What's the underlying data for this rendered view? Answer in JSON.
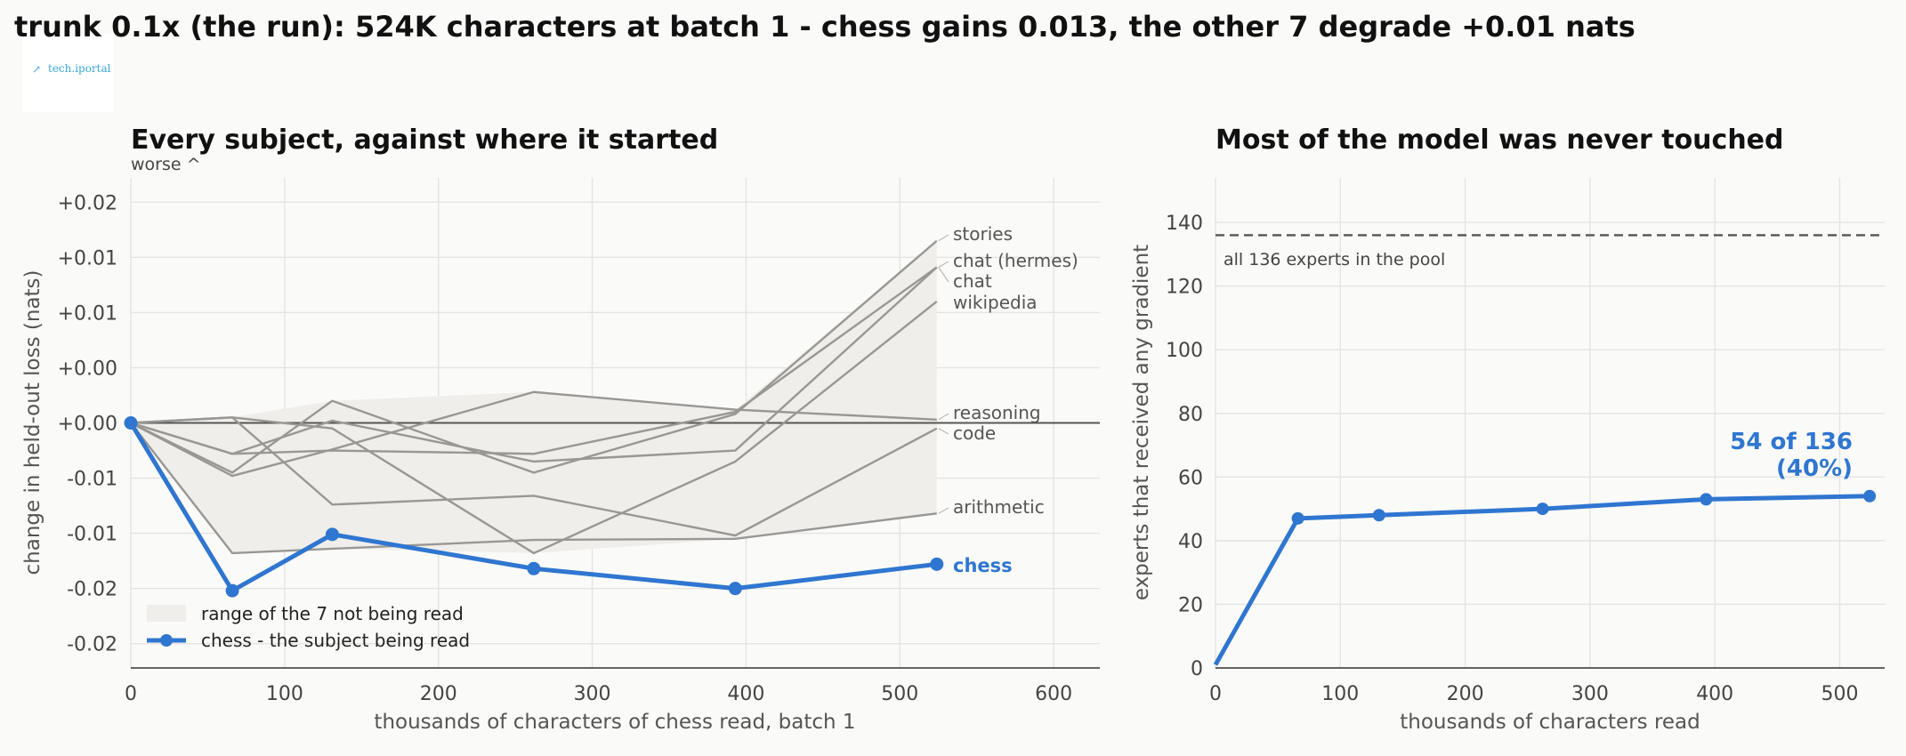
{
  "suptitle": "trunk 0.1x (the run): 524K characters at batch 1 - chess gains 0.013, the other 7 degrade +0.01 nats",
  "logo": {
    "text": "tech.iportal"
  },
  "colors": {
    "accent": "#2f76d0",
    "others": "#999794",
    "band": "#efeeeb",
    "zero": "#555555",
    "background": "#fafaf8"
  },
  "chart_data": [
    {
      "type": "line",
      "title": "Every subject, against where it started",
      "direction_note": "worse  ^",
      "xlabel": "thousands of characters of chess read, batch 1",
      "ylabel": "change in held-out loss (nats)",
      "xlim": [
        0,
        630
      ],
      "ylim": [
        -0.0222,
        0.0222
      ],
      "xticks": [
        0,
        100,
        200,
        300,
        400,
        500,
        600
      ],
      "yticks": [
        {
          "v": -0.02,
          "label": "-0.02"
        },
        {
          "v": -0.015,
          "label": "-0.02"
        },
        {
          "v": -0.01,
          "label": "-0.01"
        },
        {
          "v": -0.005,
          "label": "-0.01"
        },
        {
          "v": 0,
          "label": "+0.00"
        },
        {
          "v": 0.005,
          "label": "+0.00"
        },
        {
          "v": 0.01,
          "label": "+0.01"
        },
        {
          "v": 0.015,
          "label": "+0.01"
        },
        {
          "v": 0.02,
          "label": "+0.02"
        }
      ],
      "grid": true,
      "zero_line": 0,
      "x": [
        0,
        66,
        131,
        262,
        393,
        524
      ],
      "series": [
        {
          "name": "stories",
          "values": [
            0,
            -0.0045,
            0.002,
            -0.0045,
            0.0008,
            0.0165
          ]
        },
        {
          "name": "chat (hermes)",
          "values": [
            0,
            -0.0028,
            -0.0025,
            -0.0028,
            0.001,
            0.0141
          ]
        },
        {
          "name": "chat",
          "values": [
            0,
            -0.0028,
            0.0002,
            -0.0035,
            -0.0025,
            0.0141
          ]
        },
        {
          "name": "wikipedia",
          "values": [
            0,
            0.0005,
            -0.0005,
            -0.0118,
            -0.0035,
            0.011
          ]
        },
        {
          "name": "reasoning",
          "values": [
            0,
            -0.0048,
            -0.0024,
            0.0028,
            0.0012,
            0.0003
          ]
        },
        {
          "name": "code",
          "values": [
            0,
            0.0005,
            -0.0074,
            -0.0066,
            -0.0102,
            -0.0005
          ]
        },
        {
          "name": "arithmetic",
          "values": [
            0,
            -0.0118,
            -0.0114,
            -0.0106,
            -0.0105,
            -0.0082
          ]
        }
      ],
      "band": {
        "name": "range of the 7 not being read",
        "lower": [
          0,
          -0.0118,
          -0.0114,
          -0.0118,
          -0.0105,
          -0.0082
        ],
        "upper": [
          0,
          0.0005,
          0.002,
          0.0028,
          0.0012,
          0.0165
        ]
      },
      "highlight": {
        "name": "chess - the subject being read",
        "label": "chess",
        "values": [
          0,
          -0.0152,
          -0.0101,
          -0.0132,
          -0.015,
          -0.0128
        ]
      },
      "legend": {
        "position": "lower-left",
        "entries": [
          "range of the 7 not being read",
          "chess - the subject being read"
        ]
      }
    },
    {
      "type": "line",
      "title": "Most of the model was never touched",
      "xlabel": "thousands of characters read",
      "ylabel": "experts that received any gradient",
      "xlim": [
        0,
        536
      ],
      "ylim": [
        0,
        154
      ],
      "xticks": [
        0,
        100,
        200,
        300,
        400,
        500
      ],
      "yticks": [
        0,
        20,
        40,
        60,
        80,
        100,
        120,
        140
      ],
      "grid": true,
      "reference_line": {
        "value": 136,
        "label": "all 136 experts in the pool"
      },
      "x": [
        0,
        66,
        131,
        262,
        393,
        524
      ],
      "values": [
        1,
        47,
        48,
        50,
        53,
        54
      ],
      "annotation": {
        "line1": "54 of 136",
        "line2": "(40%)"
      }
    }
  ]
}
